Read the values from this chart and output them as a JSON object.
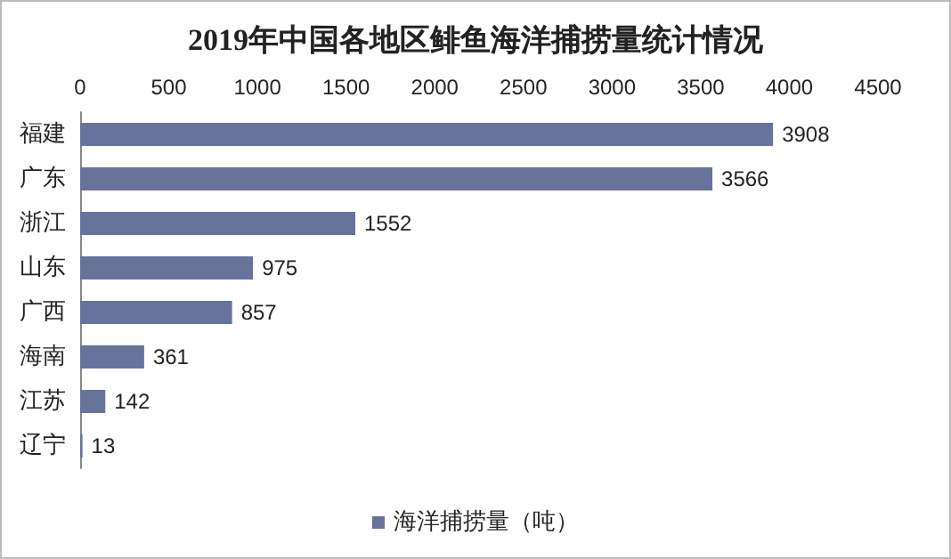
{
  "chart_data": {
    "type": "bar",
    "orientation": "horizontal",
    "title": "2019年中国各地区鲱鱼海洋捕捞量统计情况",
    "categories": [
      "福建",
      "广东",
      "浙江",
      "山东",
      "广西",
      "海南",
      "江苏",
      "辽宁"
    ],
    "series": [
      {
        "name": "海洋捕捞量（吨）",
        "color": "#67739b",
        "values": [
          3908,
          3566,
          1552,
          975,
          857,
          361,
          142,
          13
        ]
      }
    ],
    "xlim": [
      0,
      4500
    ],
    "xticks": [
      0,
      500,
      1000,
      1500,
      2000,
      2500,
      3000,
      3500,
      4000,
      4500
    ],
    "data_labels": true,
    "grid": false,
    "legend": "bottom"
  }
}
